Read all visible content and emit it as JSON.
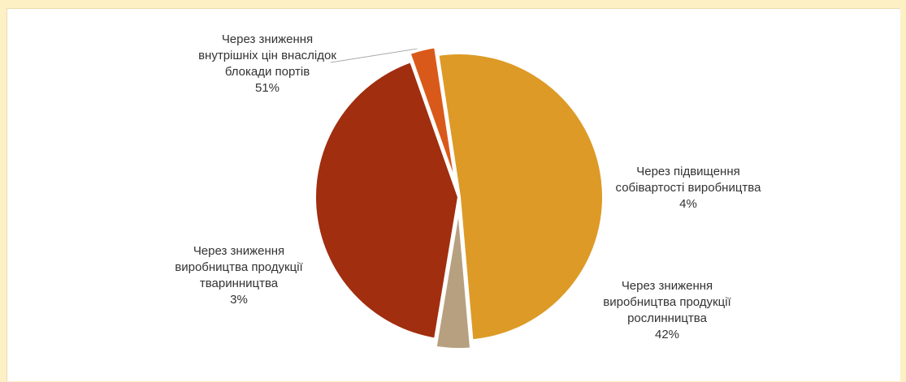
{
  "chart_data": {
    "type": "pie",
    "title": "",
    "slices": [
      {
        "label_lines": [
          "Через зниження",
          "внутрішніх цін внаслідок",
          "блокади портів"
        ],
        "pct_label": "51%",
        "value": 51,
        "color": "#dd9a26"
      },
      {
        "label_lines": [
          "Через підвищення",
          "собівартості виробництва"
        ],
        "pct_label": "4%",
        "value": 4,
        "color": "#b7a07f"
      },
      {
        "label_lines": [
          "Через зниження",
          "виробництва продукції",
          "рослинництва"
        ],
        "pct_label": "42%",
        "value": 42,
        "color": "#a12e0e"
      },
      {
        "label_lines": [
          "Через зниження",
          "виробництва продукції",
          "тваринництва"
        ],
        "pct_label": "3%",
        "value": 3,
        "color": "#d9591a"
      }
    ]
  }
}
